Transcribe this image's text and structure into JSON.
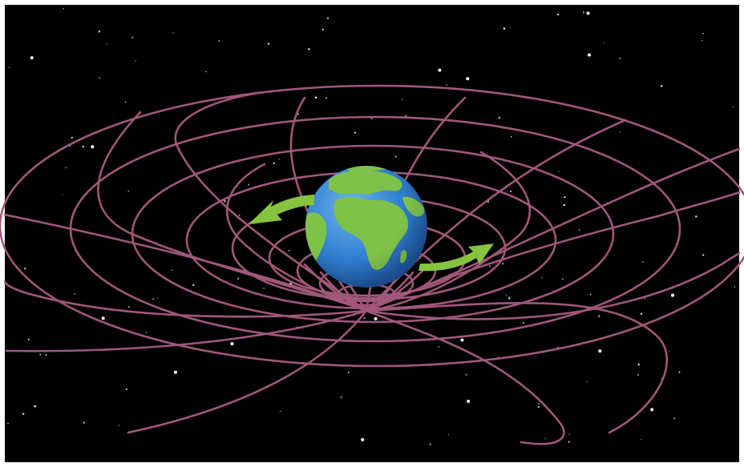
{
  "illustration": {
    "subject": "earth-in-curved-spacetime",
    "colors": {
      "space_background": "#000000",
      "spacetime_grid": "#a0577a",
      "rotation_arrows": "#86c440",
      "ocean": "#2f7fd0",
      "land": "#7fc24a",
      "stars": "#ffffff",
      "frame": "#ffffff"
    },
    "icons": [
      "earth-globe-icon",
      "rotation-arrow-left-icon",
      "rotation-arrow-right-icon"
    ]
  }
}
